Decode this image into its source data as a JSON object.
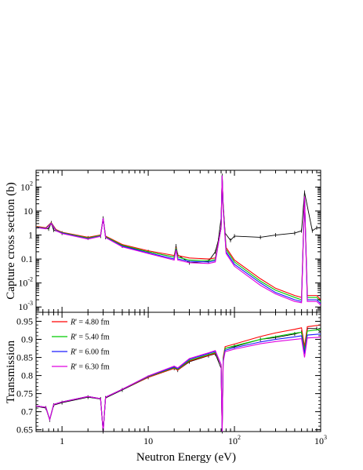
{
  "chart_data": [
    {
      "type": "line",
      "xlabel": "",
      "ylabel": "Capture cross section (b)",
      "xscale": "log",
      "yscale": "log",
      "xlim": [
        0.5,
        1000
      ],
      "ylim": [
        0.0006,
        500
      ],
      "x_tick_labels": [],
      "y_ticks": [
        {
          "value": 0.001,
          "label": "10",
          "exp": "-3"
        },
        {
          "value": 0.01,
          "label": "10",
          "exp": "-2"
        },
        {
          "value": 0.1,
          "label": "0.1",
          "exp": ""
        },
        {
          "value": 1,
          "label": "1",
          "exp": ""
        },
        {
          "value": 10,
          "label": "10",
          "exp": ""
        },
        {
          "value": 100,
          "label": "10",
          "exp": "2"
        }
      ],
      "grid": false,
      "experimental_data": {
        "name": "",
        "color": "#000000",
        "x": [
          0.5,
          0.7,
          0.75,
          0.8,
          1,
          2,
          2.8,
          3.0,
          3.2,
          5,
          10,
          20,
          21,
          22,
          30,
          50,
          60,
          65,
          70,
          72,
          74,
          78,
          90,
          100,
          200,
          300,
          500,
          600,
          650,
          800,
          900,
          1000
        ],
        "y": [
          2.2,
          1.8,
          3.2,
          1.6,
          1.2,
          0.75,
          0.9,
          5.0,
          0.8,
          0.35,
          0.2,
          0.12,
          0.35,
          0.15,
          0.07,
          0.08,
          0.2,
          0.6,
          5,
          300,
          20,
          1.2,
          0.6,
          0.9,
          0.8,
          1.0,
          1.2,
          1.5,
          60,
          1.5,
          2.0,
          2.0
        ]
      },
      "series": [
        {
          "name": "R' = 4.80 fm",
          "color": "#ff0000",
          "x": [
            0.5,
            0.65,
            0.75,
            0.85,
            1,
            2,
            2.8,
            3.0,
            3.2,
            5,
            10,
            20,
            21,
            22,
            30,
            50,
            60,
            70,
            72,
            74,
            80,
            100,
            200,
            300,
            500,
            600,
            650,
            700,
            900,
            1000
          ],
          "y": [
            2.3,
            2.0,
            3.3,
            1.7,
            1.3,
            0.8,
            1.0,
            5.0,
            0.9,
            0.4,
            0.22,
            0.14,
            0.3,
            0.14,
            0.11,
            0.1,
            0.11,
            2,
            300,
            15,
            0.3,
            0.09,
            0.015,
            0.006,
            0.003,
            0.0025,
            40,
            0.003,
            0.003,
            0.002
          ]
        },
        {
          "name": "R' = 5.40 fm",
          "color": "#00cc00",
          "x": [
            0.5,
            0.65,
            0.75,
            0.85,
            1,
            2,
            2.8,
            3.0,
            3.2,
            5,
            10,
            20,
            21,
            22,
            30,
            50,
            60,
            70,
            72,
            74,
            80,
            100,
            200,
            300,
            500,
            600,
            650,
            700,
            900,
            1000
          ],
          "y": [
            2.2,
            1.9,
            3.2,
            1.6,
            1.25,
            0.75,
            0.95,
            5.0,
            0.85,
            0.37,
            0.2,
            0.12,
            0.28,
            0.12,
            0.09,
            0.085,
            0.095,
            2,
            300,
            14,
            0.25,
            0.075,
            0.012,
            0.005,
            0.0025,
            0.002,
            40,
            0.0025,
            0.0025,
            0.0017
          ]
        },
        {
          "name": "R' = 6.00 fm",
          "color": "#1a1aff",
          "x": [
            0.5,
            0.65,
            0.75,
            0.85,
            1,
            2,
            2.8,
            3.0,
            3.2,
            5,
            10,
            20,
            21,
            22,
            30,
            50,
            60,
            70,
            72,
            74,
            80,
            100,
            200,
            300,
            500,
            600,
            650,
            700,
            900,
            1000
          ],
          "y": [
            2.1,
            1.85,
            3.1,
            1.55,
            1.2,
            0.7,
            0.9,
            5.0,
            0.8,
            0.34,
            0.18,
            0.1,
            0.25,
            0.1,
            0.08,
            0.075,
            0.085,
            2,
            300,
            13,
            0.2,
            0.06,
            0.01,
            0.004,
            0.002,
            0.0017,
            40,
            0.002,
            0.002,
            0.0014
          ]
        },
        {
          "name": "R' = 6.30 fm",
          "color": "#e000e0",
          "x": [
            0.5,
            0.65,
            0.75,
            0.85,
            1,
            2,
            2.8,
            3.0,
            3.2,
            5,
            10,
            20,
            21,
            22,
            30,
            50,
            60,
            70,
            72,
            74,
            80,
            100,
            200,
            300,
            500,
            600,
            650,
            700,
            900,
            1000
          ],
          "y": [
            2.05,
            1.8,
            3.0,
            1.5,
            1.15,
            0.68,
            0.88,
            5.0,
            0.78,
            0.32,
            0.17,
            0.09,
            0.23,
            0.09,
            0.07,
            0.065,
            0.075,
            2,
            300,
            12,
            0.17,
            0.05,
            0.008,
            0.0035,
            0.0017,
            0.0015,
            40,
            0.0017,
            0.0017,
            0.0012
          ]
        }
      ]
    },
    {
      "type": "line",
      "xlabel": "Neutron Energy (eV)",
      "ylabel": "Transmission",
      "xscale": "log",
      "yscale": "linear",
      "xlim": [
        0.5,
        1000
      ],
      "ylim": [
        0.645,
        0.975
      ],
      "x_ticks": [
        {
          "value": 1,
          "label": "1",
          "exp": ""
        },
        {
          "value": 10,
          "label": "10",
          "exp": ""
        },
        {
          "value": 100,
          "label": "10",
          "exp": "2"
        },
        {
          "value": 1000,
          "label": "10",
          "exp": "3"
        }
      ],
      "y_ticks": [
        {
          "value": 0.65,
          "label": "0.65"
        },
        {
          "value": 0.7,
          "label": "0.7"
        },
        {
          "value": 0.75,
          "label": "0.75"
        },
        {
          "value": 0.8,
          "label": "0.8"
        },
        {
          "value": 0.85,
          "label": "0.85"
        },
        {
          "value": 0.9,
          "label": "0.9"
        },
        {
          "value": 0.95,
          "label": "0.95"
        }
      ],
      "grid": false,
      "legend_position": "top-left",
      "experimental_data": {
        "name": "",
        "color": "#000000",
        "x": [
          0.5,
          0.65,
          0.72,
          0.8,
          1,
          2,
          2.8,
          3.0,
          3.2,
          5,
          10,
          20,
          22,
          30,
          50,
          60,
          70,
          72,
          74,
          78,
          100,
          200,
          300,
          500,
          600,
          650,
          700,
          900,
          1000
        ],
        "y": [
          0.715,
          0.71,
          0.677,
          0.718,
          0.725,
          0.74,
          0.735,
          0.635,
          0.738,
          0.76,
          0.795,
          0.82,
          0.815,
          0.838,
          0.855,
          0.86,
          0.82,
          0.64,
          0.84,
          0.875,
          0.88,
          0.9,
          0.905,
          0.915,
          0.92,
          0.87,
          0.93,
          0.93,
          0.92
        ]
      },
      "series": [
        {
          "name": "R' = 4.80 fm",
          "color": "#ff0000",
          "x": [
            0.5,
            0.65,
            0.72,
            0.8,
            1,
            2,
            2.8,
            3.0,
            3.2,
            5,
            10,
            20,
            22,
            30,
            50,
            60,
            70,
            72,
            74,
            78,
            100,
            200,
            300,
            500,
            600,
            650,
            700,
            1000
          ],
          "y": [
            0.716,
            0.712,
            0.678,
            0.72,
            0.727,
            0.742,
            0.736,
            0.64,
            0.74,
            0.762,
            0.795,
            0.82,
            0.815,
            0.84,
            0.856,
            0.862,
            0.83,
            0.64,
            0.85,
            0.88,
            0.887,
            0.908,
            0.918,
            0.928,
            0.932,
            0.88,
            0.935,
            0.94
          ]
        },
        {
          "name": "R' = 5.40 fm",
          "color": "#00cc00",
          "x": [
            0.5,
            0.65,
            0.72,
            0.8,
            1,
            2,
            2.8,
            3.0,
            3.2,
            5,
            10,
            20,
            22,
            30,
            50,
            60,
            70,
            72,
            74,
            78,
            100,
            200,
            300,
            500,
            600,
            650,
            700,
            1000
          ],
          "y": [
            0.716,
            0.712,
            0.678,
            0.72,
            0.727,
            0.742,
            0.736,
            0.64,
            0.74,
            0.762,
            0.797,
            0.822,
            0.817,
            0.842,
            0.858,
            0.864,
            0.83,
            0.64,
            0.845,
            0.875,
            0.882,
            0.9,
            0.908,
            0.917,
            0.92,
            0.87,
            0.923,
            0.928
          ]
        },
        {
          "name": "R' = 6.00 fm",
          "color": "#1a1aff",
          "x": [
            0.5,
            0.65,
            0.72,
            0.8,
            1,
            2,
            2.8,
            3.0,
            3.2,
            5,
            10,
            20,
            22,
            30,
            50,
            60,
            70,
            72,
            74,
            78,
            100,
            200,
            300,
            500,
            600,
            650,
            700,
            1000
          ],
          "y": [
            0.716,
            0.712,
            0.678,
            0.72,
            0.727,
            0.742,
            0.736,
            0.64,
            0.74,
            0.762,
            0.798,
            0.824,
            0.819,
            0.845,
            0.861,
            0.867,
            0.83,
            0.64,
            0.84,
            0.87,
            0.877,
            0.893,
            0.9,
            0.907,
            0.91,
            0.86,
            0.912,
            0.915
          ]
        },
        {
          "name": "R' = 6.30 fm",
          "color": "#e000e0",
          "x": [
            0.5,
            0.65,
            0.72,
            0.8,
            1,
            2,
            2.8,
            3.0,
            3.2,
            5,
            10,
            20,
            22,
            30,
            50,
            60,
            70,
            72,
            74,
            78,
            100,
            200,
            300,
            500,
            600,
            650,
            700,
            1000
          ],
          "y": [
            0.716,
            0.712,
            0.678,
            0.72,
            0.727,
            0.742,
            0.736,
            0.64,
            0.74,
            0.762,
            0.799,
            0.826,
            0.821,
            0.847,
            0.863,
            0.869,
            0.83,
            0.64,
            0.837,
            0.866,
            0.873,
            0.888,
            0.894,
            0.9,
            0.902,
            0.85,
            0.904,
            0.906
          ]
        }
      ],
      "legend": [
        {
          "symbol": "R",
          "prime": "'",
          "value": "= 4.80 fm",
          "color": "#ff0000"
        },
        {
          "symbol": "R",
          "prime": "'",
          "value": "= 5.40 fm",
          "color": "#00cc00"
        },
        {
          "symbol": "R",
          "prime": "'",
          "value": "= 6.00 fm",
          "color": "#1a1aff"
        },
        {
          "symbol": "R",
          "prime": "'",
          "value": "= 6.30 fm",
          "color": "#e000e0"
        }
      ]
    }
  ]
}
